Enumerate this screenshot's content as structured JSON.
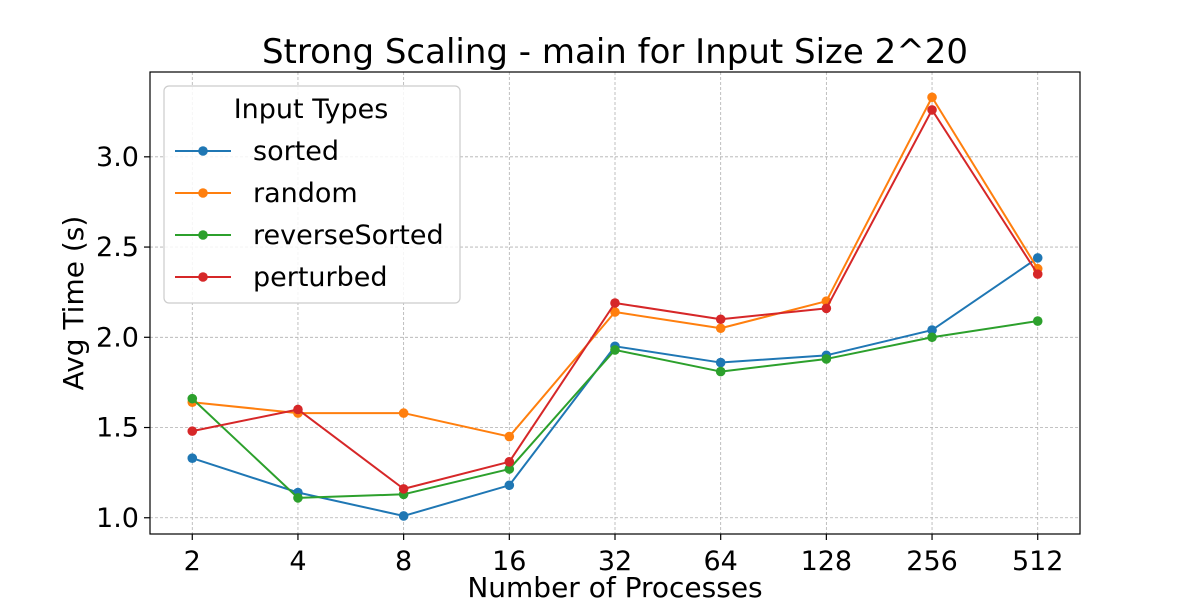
{
  "chart_data": {
    "type": "line",
    "title": "Strong Scaling - main for Input Size 2^20",
    "xlabel": "Number of Processes",
    "ylabel": "Avg Time (s)",
    "x_scale": "log2",
    "categories": [
      "2",
      "4",
      "8",
      "16",
      "32",
      "64",
      "128",
      "256",
      "512"
    ],
    "x": [
      2,
      4,
      8,
      16,
      32,
      64,
      128,
      256,
      512
    ],
    "ylim": [
      0.91,
      3.47
    ],
    "yticks": [
      "1.0",
      "1.5",
      "2.0",
      "2.5",
      "3.0"
    ],
    "ytick_values": [
      1.0,
      1.5,
      2.0,
      2.5,
      3.0
    ],
    "grid": true,
    "legend": {
      "title": "Input Types",
      "position": "upper-left"
    },
    "series": [
      {
        "name": "sorted",
        "color": "#1f77b4",
        "values": [
          1.33,
          1.14,
          1.01,
          1.18,
          1.95,
          1.86,
          1.9,
          2.04,
          2.44
        ]
      },
      {
        "name": "random",
        "color": "#ff7f0e",
        "values": [
          1.64,
          1.58,
          1.58,
          1.45,
          2.14,
          2.05,
          2.2,
          3.33,
          2.38
        ]
      },
      {
        "name": "reverseSorted",
        "color": "#2ca02c",
        "values": [
          1.66,
          1.11,
          1.13,
          1.27,
          1.93,
          1.81,
          1.88,
          2.0,
          2.09
        ]
      },
      {
        "name": "perturbed",
        "color": "#d62728",
        "values": [
          1.48,
          1.6,
          1.16,
          1.31,
          2.19,
          2.1,
          2.16,
          3.26,
          2.35
        ]
      }
    ]
  }
}
